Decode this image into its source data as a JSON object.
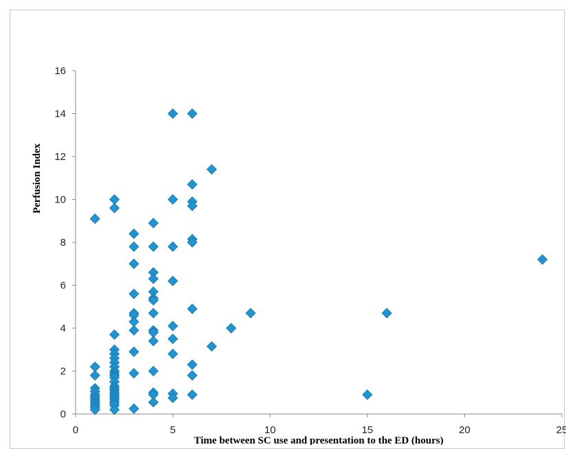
{
  "chart_data": {
    "type": "scatter",
    "title": "",
    "xlabel": "Time between SC use and presentation to the ED (hours)",
    "ylabel": "Perfusion Index",
    "xlim": [
      0,
      25
    ],
    "ylim": [
      0,
      16
    ],
    "x_ticks": [
      0,
      5,
      10,
      15,
      20,
      25
    ],
    "y_ticks": [
      0,
      2,
      4,
      6,
      8,
      10,
      12,
      14,
      16
    ],
    "grid": false,
    "legend": "none",
    "marker": "diamond",
    "color": "#1f95d4",
    "points": [
      [
        1,
        9.1
      ],
      [
        1,
        2.2
      ],
      [
        1,
        1.8
      ],
      [
        1,
        1.2
      ],
      [
        1,
        1.05
      ],
      [
        1,
        0.9
      ],
      [
        1,
        0.8
      ],
      [
        1,
        0.7
      ],
      [
        1,
        0.6
      ],
      [
        1,
        0.5
      ],
      [
        1,
        0.4
      ],
      [
        1,
        0.3
      ],
      [
        1,
        0.2
      ],
      [
        2,
        10.0
      ],
      [
        2,
        9.6
      ],
      [
        2,
        3.7
      ],
      [
        2,
        3.0
      ],
      [
        2,
        2.8
      ],
      [
        2,
        2.6
      ],
      [
        2,
        2.4
      ],
      [
        2,
        2.2
      ],
      [
        2,
        2.0
      ],
      [
        2,
        1.9
      ],
      [
        2,
        1.8
      ],
      [
        2,
        1.7
      ],
      [
        2,
        1.5
      ],
      [
        2,
        1.3
      ],
      [
        2,
        1.2
      ],
      [
        2,
        1.1
      ],
      [
        2,
        1.0
      ],
      [
        2,
        0.9
      ],
      [
        2,
        0.8
      ],
      [
        2,
        0.7
      ],
      [
        2,
        0.6
      ],
      [
        2,
        0.5
      ],
      [
        2,
        0.4
      ],
      [
        2,
        0.2
      ],
      [
        3,
        8.4
      ],
      [
        3,
        7.8
      ],
      [
        3,
        7.0
      ],
      [
        3,
        5.6
      ],
      [
        3,
        4.7
      ],
      [
        3,
        4.6
      ],
      [
        3,
        4.3
      ],
      [
        3,
        3.9
      ],
      [
        3,
        2.9
      ],
      [
        3,
        1.9
      ],
      [
        3,
        0.25
      ],
      [
        4,
        8.9
      ],
      [
        4,
        7.8
      ],
      [
        4,
        6.6
      ],
      [
        4,
        6.3
      ],
      [
        4,
        5.7
      ],
      [
        4,
        5.4
      ],
      [
        4,
        5.3
      ],
      [
        4,
        4.7
      ],
      [
        4,
        3.9
      ],
      [
        4,
        3.8
      ],
      [
        4,
        3.4
      ],
      [
        4,
        2.0
      ],
      [
        4,
        1.0
      ],
      [
        4,
        0.9
      ],
      [
        4,
        0.55
      ],
      [
        5,
        14.0
      ],
      [
        5,
        10.0
      ],
      [
        5,
        7.8
      ],
      [
        5,
        6.2
      ],
      [
        5,
        4.1
      ],
      [
        5,
        3.5
      ],
      [
        5,
        2.8
      ],
      [
        5,
        0.95
      ],
      [
        5,
        0.75
      ],
      [
        6,
        14.0
      ],
      [
        6,
        10.7
      ],
      [
        6,
        9.9
      ],
      [
        6,
        9.7
      ],
      [
        6,
        8.15
      ],
      [
        6,
        8.0
      ],
      [
        6,
        4.9
      ],
      [
        6,
        2.3
      ],
      [
        6,
        1.8
      ],
      [
        6,
        0.9
      ],
      [
        7,
        11.4
      ],
      [
        7,
        3.15
      ],
      [
        8,
        4.0
      ],
      [
        9,
        4.7
      ],
      [
        15,
        0.9
      ],
      [
        16,
        4.7
      ],
      [
        24,
        7.2
      ]
    ]
  }
}
